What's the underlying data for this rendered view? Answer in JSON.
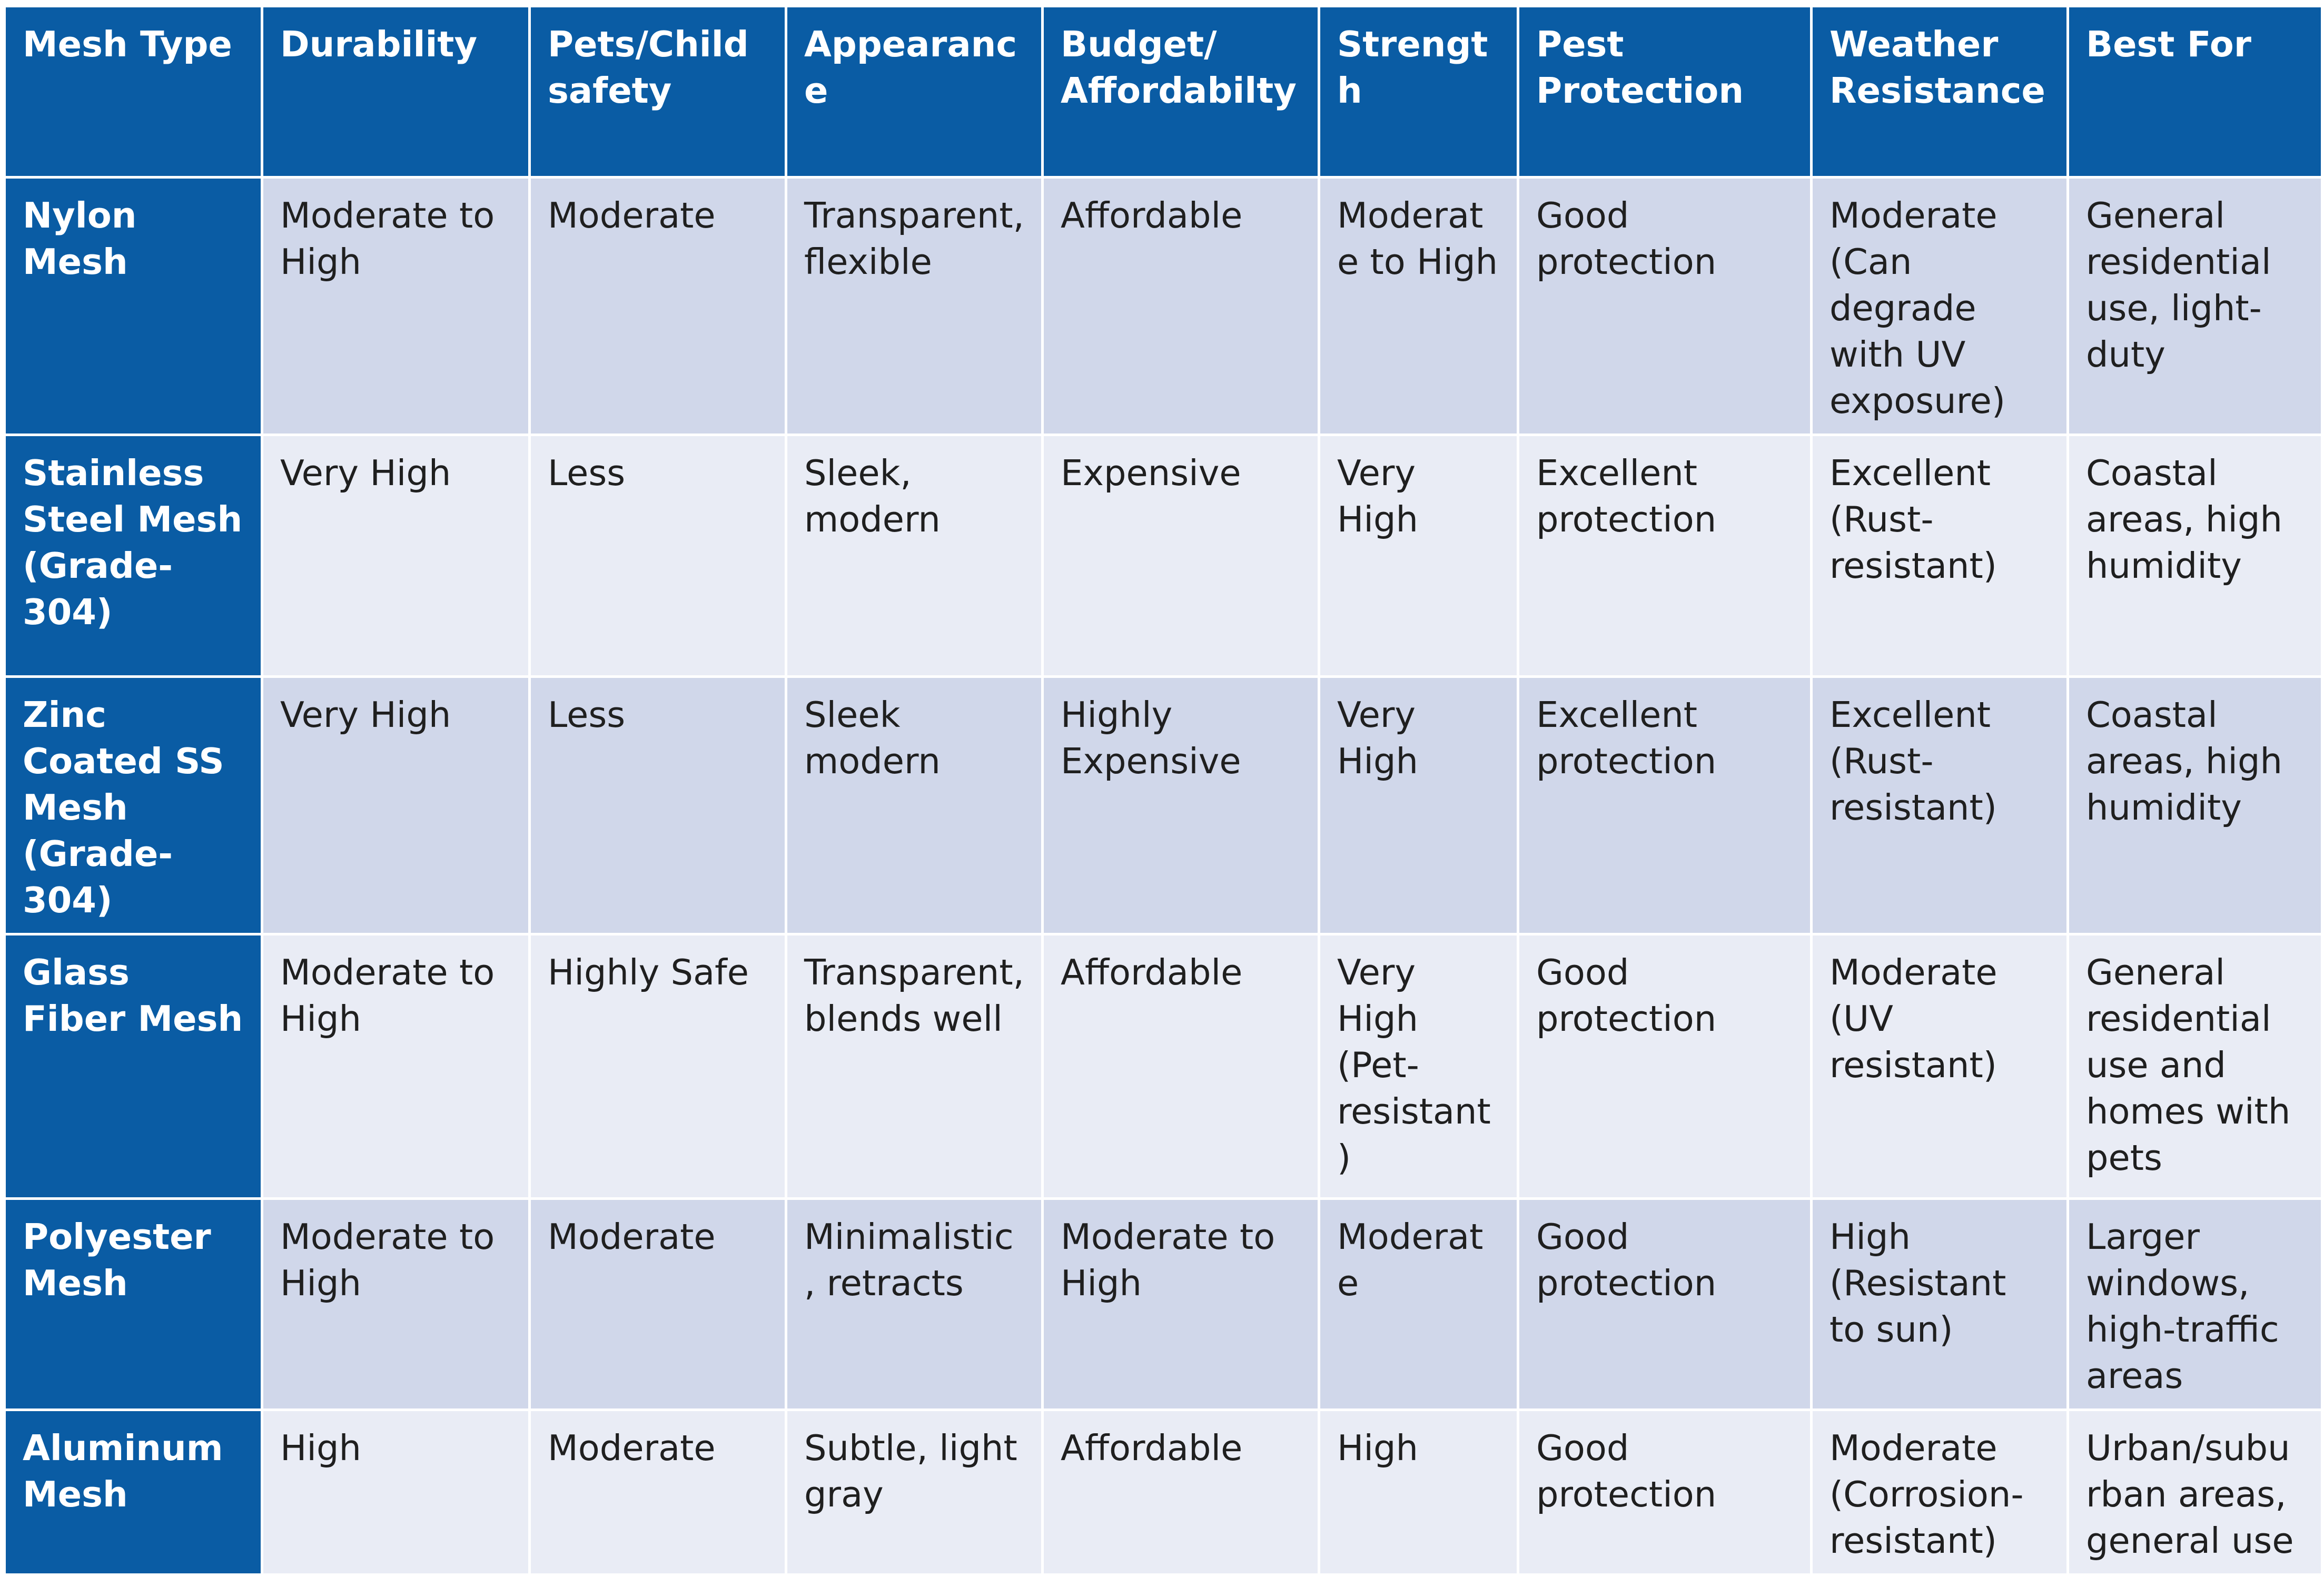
{
  "headers": [
    "Mesh Type",
    "Durability",
    "Pets/Child safety",
    "Appearance",
    "Budget/ Affordabilty",
    "Strength",
    "Pest Protection",
    "Weather Resistance",
    "Best For"
  ],
  "rows": [
    {
      "type": "Nylon Mesh",
      "durability": "Moderate to High",
      "safety": "Moderate",
      "appearance": "Transparent, flexible",
      "budget": "Affordable",
      "strength": "Moderate to High",
      "pest": "Good protection",
      "weather": "Moderate (Can degrade with UV exposure)",
      "best_for": "General residential use, light-duty"
    },
    {
      "type": "Stainless Steel Mesh (Grade-304)",
      "durability": "Very High",
      "safety": "Less",
      "appearance": "Sleek, modern",
      "budget": "Expensive",
      "strength": "Very High",
      "pest": "Excellent protection",
      "weather": "Excellent (Rust-resistant)",
      "best_for": "Coastal areas, high humidity"
    },
    {
      "type": "Zinc Coated SS Mesh (Grade-304)",
      "durability": "Very High",
      "safety": "Less",
      "appearance": "Sleek modern",
      "budget": "Highly Expensive",
      "strength": "Very High",
      "pest": "Excellent protection",
      "weather": "Excellent (Rust-resistant)",
      "best_for": "Coastal areas, high humidity"
    },
    {
      "type": "Glass Fiber Mesh",
      "durability": "Moderate to High",
      "safety": "Highly Safe",
      "appearance": "Transparent, blends well",
      "budget": "Affordable",
      "strength": "Very High (Pet-resistant)",
      "pest": "Good protection",
      "weather": "Moderate (UV resistant)",
      "best_for": "General residential use and homes with pets"
    },
    {
      "type": "Polyester Mesh",
      "durability": "Moderate to High",
      "safety": "Moderate",
      "appearance": "Minimalistic, retracts",
      "budget": "Moderate to High",
      "strength": "Moderate",
      "pest": "Good protection",
      "weather": "High (Resistant to sun)",
      "best_for": "Larger windows, high-traffic areas"
    },
    {
      "type": "Aluminum Mesh",
      "durability": "High",
      "safety": "Moderate",
      "appearance": "Subtle, light gray",
      "budget": "Affordable",
      "strength": "High",
      "pest": "Good protection",
      "weather": "Moderate (Corrosion-resistant)",
      "best_for": "Urban/suburban areas, general use"
    }
  ],
  "colors": {
    "header_bg": "#0a5ca4",
    "header_text": "#ffffff",
    "row_odd_bg": "#d0d7ea",
    "row_even_bg": "#e9ecf5",
    "cell_text": "#1f1f1f"
  }
}
